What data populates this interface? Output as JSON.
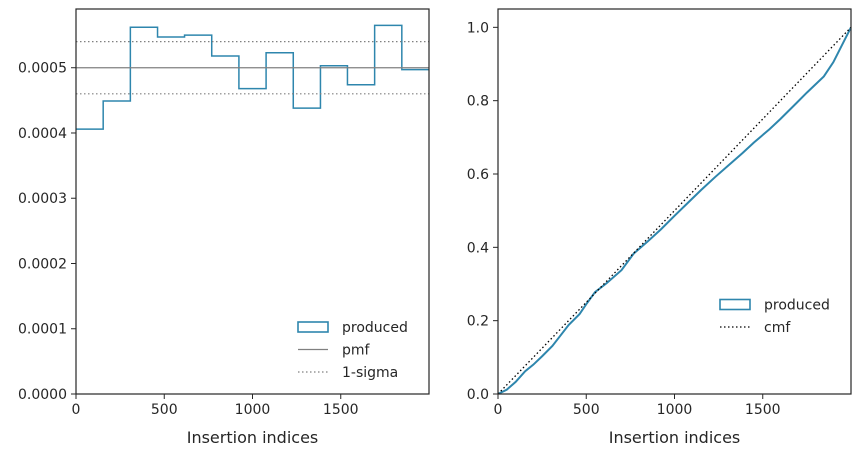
{
  "chart_data": [
    {
      "type": "line",
      "drawstyle": "step",
      "xlabel": "Insertion indices",
      "ylabel": "",
      "xlim": [
        0,
        2000
      ],
      "ylim": [
        0,
        0.00059
      ],
      "xticks": [
        0,
        500,
        1000,
        1500
      ],
      "xtick_labels": [
        "0",
        "500",
        "1000",
        "1500"
      ],
      "yticks": [
        0,
        0.0001,
        0.0002,
        0.0003,
        0.0004,
        0.0005
      ],
      "ytick_labels": [
        "0.0000",
        "0.0001",
        "0.0002",
        "0.0003",
        "0.0004",
        "0.0005"
      ],
      "legend": {
        "position": "lower-right",
        "entries": [
          "produced",
          "pmf",
          "1-sigma"
        ]
      },
      "series": [
        {
          "name": "produced",
          "style": "step-histogram",
          "bin_edges": [
            0,
            154,
            308,
            462,
            615,
            769,
            923,
            1077,
            1231,
            1385,
            1538,
            1692,
            1846,
            2000
          ],
          "values": [
            0.000406,
            0.000449,
            0.000562,
            0.000547,
            0.00055,
            0.000518,
            0.000468,
            0.000523,
            0.000438,
            0.000503,
            0.000474,
            0.000565,
            0.000497
          ],
          "color": "#2e86ad"
        },
        {
          "name": "pmf",
          "style": "solid-hline",
          "y": 0.0005,
          "color": "#808080"
        },
        {
          "name": "1-sigma",
          "style": "dotted-hline",
          "y": [
            0.00046,
            0.00054
          ],
          "color": "#808080"
        }
      ]
    },
    {
      "type": "line",
      "xlabel": "Insertion indices",
      "ylabel": "",
      "xlim": [
        0,
        2000
      ],
      "ylim": [
        0,
        1.05
      ],
      "xticks": [
        0,
        500,
        1000,
        1500
      ],
      "xtick_labels": [
        "0",
        "500",
        "1000",
        "1500"
      ],
      "yticks": [
        0,
        0.2,
        0.4,
        0.6,
        0.8,
        1.0
      ],
      "ytick_labels": [
        "0.0",
        "0.2",
        "0.4",
        "0.6",
        "0.8",
        "1.0"
      ],
      "legend": {
        "position": "lower-right",
        "entries": [
          "produced",
          "cmf"
        ]
      },
      "series": [
        {
          "name": "produced",
          "style": "step-cumulative",
          "x": [
            0,
            50,
            100,
            154,
            200,
            250,
            308,
            350,
            400,
            462,
            500,
            550,
            615,
            700,
            769,
            850,
            923,
            1000,
            1077,
            1150,
            1231,
            1300,
            1385,
            1450,
            1538,
            1600,
            1692,
            1750,
            1846,
            1900,
            2000
          ],
          "values": [
            0,
            0.012,
            0.033,
            0.062,
            0.08,
            0.103,
            0.131,
            0.157,
            0.188,
            0.218,
            0.245,
            0.278,
            0.302,
            0.338,
            0.383,
            0.417,
            0.449,
            0.486,
            0.522,
            0.556,
            0.592,
            0.621,
            0.657,
            0.686,
            0.722,
            0.75,
            0.794,
            0.822,
            0.866,
            0.905,
            1.0
          ],
          "color": "#2e86ad"
        },
        {
          "name": "cmf",
          "style": "dotted-line",
          "x": [
            0,
            2000
          ],
          "values": [
            0,
            1.0
          ],
          "color": "#000000"
        }
      ]
    }
  ]
}
